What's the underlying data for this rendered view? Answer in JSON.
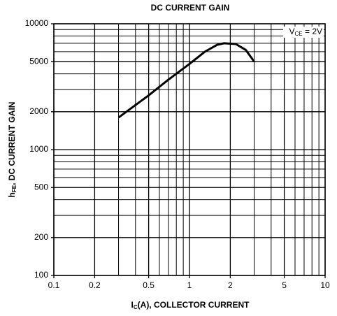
{
  "chart_data": {
    "type": "line",
    "title": "DC CURRENT GAIN",
    "x_label": {
      "main": "I",
      "sub": "C",
      "rest": "(A), COLLECTOR CURRENT"
    },
    "y_label": {
      "main": "h",
      "sub": "FE",
      "rest": ", DC CURRENT GAIN"
    },
    "annotation": {
      "main": "V",
      "sub": "CE",
      "rest": " = 2V"
    },
    "x_log": true,
    "y_log": true,
    "grid": true,
    "xlim": [
      0.1,
      10
    ],
    "ylim": [
      100,
      10000
    ],
    "xticks": [
      0.1,
      0.2,
      0.5,
      1,
      2,
      5,
      10
    ],
    "yticks": [
      100,
      200,
      500,
      1000,
      2000,
      5000,
      10000
    ],
    "x_minor": [
      0.3,
      0.4,
      0.6,
      0.7,
      0.8,
      0.9,
      3,
      4,
      6,
      7,
      8,
      9
    ],
    "y_minor": [
      300,
      400,
      600,
      700,
      800,
      900,
      3000,
      4000,
      6000,
      7000,
      8000,
      9000
    ],
    "series": [
      {
        "color": "#000000",
        "x": [
          0.3,
          0.5,
          0.7,
          1,
          1.3,
          1.6,
          1.8,
          2.2,
          2.6,
          3
        ],
        "values": [
          1800,
          2700,
          3600,
          4800,
          6000,
          6800,
          7000,
          6900,
          6200,
          5000
        ]
      }
    ]
  }
}
